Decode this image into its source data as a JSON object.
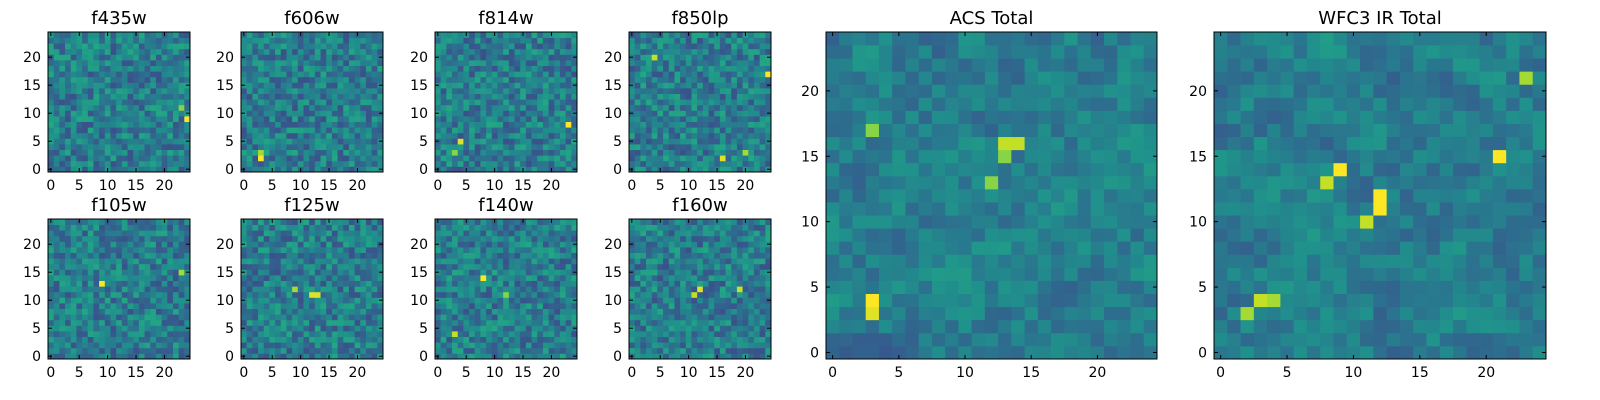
{
  "chart_data": {
    "type": "heatmap",
    "colormap": "viridis",
    "grid_size": [
      25,
      25
    ],
    "origin": "lower",
    "panels": [
      {
        "title": "f435w",
        "xticks": [
          0,
          5,
          10,
          15,
          20
        ],
        "yticks": [
          0,
          5,
          10,
          15,
          20
        ],
        "xlim": [
          -0.5,
          24.5
        ],
        "ylim": [
          -0.5,
          24.5
        ],
        "seed": 11,
        "bright_spots": [
          [
            24,
            9,
            1.0
          ],
          [
            23,
            11,
            0.6
          ]
        ]
      },
      {
        "title": "f606w",
        "xticks": [
          0,
          5,
          10,
          15,
          20
        ],
        "yticks": [
          0,
          5,
          10,
          15,
          20
        ],
        "xlim": [
          -0.5,
          24.5
        ],
        "ylim": [
          -0.5,
          24.5
        ],
        "seed": 23,
        "bright_spots": [
          [
            3,
            2,
            1.0
          ],
          [
            3,
            3,
            0.7
          ]
        ]
      },
      {
        "title": "f814w",
        "xticks": [
          0,
          5,
          10,
          15,
          20
        ],
        "yticks": [
          0,
          5,
          10,
          15,
          20
        ],
        "xlim": [
          -0.5,
          24.5
        ],
        "ylim": [
          -0.5,
          24.5
        ],
        "seed": 37,
        "bright_spots": [
          [
            23,
            8,
            1.0
          ],
          [
            4,
            5,
            0.9
          ],
          [
            3,
            3,
            0.6
          ]
        ]
      },
      {
        "title": "f850lp",
        "xticks": [
          0,
          5,
          10,
          15,
          20
        ],
        "yticks": [
          0,
          5,
          10,
          15,
          20
        ],
        "xlim": [
          -0.5,
          24.5
        ],
        "ylim": [
          -0.5,
          24.5
        ],
        "seed": 41,
        "bright_spots": [
          [
            24,
            17,
            1.0
          ],
          [
            16,
            2,
            0.9
          ],
          [
            4,
            20,
            0.8
          ],
          [
            20,
            3,
            0.7
          ]
        ]
      },
      {
        "title": "f105w",
        "xticks": [
          0,
          5,
          10,
          15,
          20
        ],
        "yticks": [
          0,
          5,
          10,
          15,
          20
        ],
        "xlim": [
          -0.5,
          24.5
        ],
        "ylim": [
          -0.5,
          24.5
        ],
        "seed": 53,
        "bright_spots": [
          [
            9,
            13,
            1.0
          ],
          [
            23,
            15,
            0.7
          ]
        ]
      },
      {
        "title": "f125w",
        "xticks": [
          0,
          5,
          10,
          15,
          20
        ],
        "yticks": [
          0,
          5,
          10,
          15,
          20
        ],
        "xlim": [
          -0.5,
          24.5
        ],
        "ylim": [
          -0.5,
          24.5
        ],
        "seed": 67,
        "bright_spots": [
          [
            12,
            11,
            0.9
          ],
          [
            13,
            11,
            0.9
          ],
          [
            9,
            12,
            0.7
          ]
        ]
      },
      {
        "title": "f140w",
        "xticks": [
          0,
          5,
          10,
          15,
          20
        ],
        "yticks": [
          0,
          5,
          10,
          15,
          20
        ],
        "xlim": [
          -0.5,
          24.5
        ],
        "ylim": [
          -0.5,
          24.5
        ],
        "seed": 71,
        "bright_spots": [
          [
            8,
            14,
            1.0
          ],
          [
            3,
            4,
            0.8
          ],
          [
            12,
            11,
            0.6
          ]
        ]
      },
      {
        "title": "f160w",
        "xticks": [
          0,
          5,
          10,
          15,
          20
        ],
        "yticks": [
          0,
          5,
          10,
          15,
          20
        ],
        "xlim": [
          -0.5,
          24.5
        ],
        "ylim": [
          -0.5,
          24.5
        ],
        "seed": 83,
        "bright_spots": [
          [
            12,
            12,
            0.9
          ],
          [
            11,
            11,
            0.8
          ],
          [
            19,
            12,
            0.8
          ]
        ]
      },
      {
        "title": "ACS Total",
        "xticks": [
          0,
          5,
          10,
          15,
          20
        ],
        "yticks": [
          0,
          5,
          10,
          15,
          20
        ],
        "xlim": [
          -0.5,
          24.5
        ],
        "ylim": [
          -0.5,
          24.5
        ],
        "seed": 97,
        "bright_spots": [
          [
            3,
            4,
            1.0
          ],
          [
            3,
            3,
            0.9
          ],
          [
            13,
            16,
            0.8
          ],
          [
            14,
            16,
            0.8
          ],
          [
            13,
            15,
            0.6
          ],
          [
            12,
            13,
            0.6
          ],
          [
            3,
            17,
            0.6
          ]
        ]
      },
      {
        "title": "WFC3 IR Total",
        "xticks": [
          0,
          5,
          10,
          15,
          20
        ],
        "yticks": [
          0,
          5,
          10,
          15,
          20
        ],
        "xlim": [
          -0.5,
          24.5
        ],
        "ylim": [
          -0.5,
          24.5
        ],
        "seed": 101,
        "bright_spots": [
          [
            12,
            11,
            1.0
          ],
          [
            12,
            12,
            1.0
          ],
          [
            9,
            14,
            1.0
          ],
          [
            21,
            15,
            1.0
          ],
          [
            11,
            10,
            0.8
          ],
          [
            8,
            13,
            0.8
          ],
          [
            3,
            4,
            0.8
          ],
          [
            4,
            4,
            0.7
          ],
          [
            2,
            3,
            0.7
          ],
          [
            23,
            21,
            0.7
          ]
        ]
      }
    ]
  }
}
